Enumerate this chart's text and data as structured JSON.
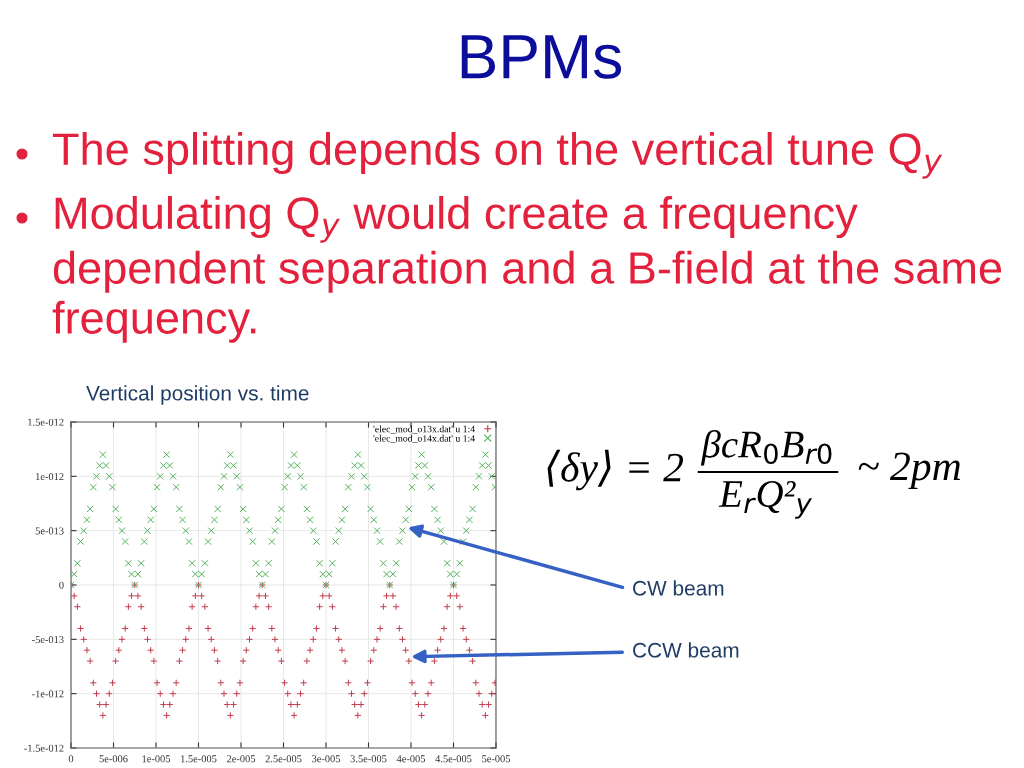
{
  "chart_data": {
    "type": "scatter",
    "title": "BPMs",
    "subtitle": "Vertical position vs. time",
    "annotations": [
      "The splitting depends on the vertical tune Q$_{y}$",
      "Modulating Q$_{y}$ would create a frequency dependent separation and a B-field at the same frequency.",
      "⟨δy⟩ = 2",
      "βcR$_{0}$B$_{r0}$",
      "E$_{r}$Q²$_{y}$",
      "~ 2pm",
      {
        "text": "CW beam",
        "x": 3.96e-05,
        "y": 5.3e-13
      },
      {
        "text": "CCW beam",
        "x": 4e-05,
        "y": -6.6e-13
      }
    ],
    "x": [
      0,
      3.75e-07,
      7.5e-07,
      1.125e-06,
      1.5e-06,
      1.875e-06,
      2.25e-06,
      2.625e-06,
      3e-06,
      3.375e-06,
      3.75e-06,
      4.125e-06,
      4.5e-06,
      4.875e-06,
      5.25e-06,
      5.625e-06,
      6e-06,
      6.375e-06,
      6.75e-06,
      7.125e-06,
      7.5e-06,
      7.875e-06,
      8.25e-06,
      8.625e-06,
      9e-06,
      9.375e-06,
      9.75e-06,
      1.0125e-05,
      1.05e-05,
      1.0875e-05,
      1.125e-05,
      1.1625e-05,
      1.2e-05,
      1.2375e-05,
      1.275e-05,
      1.3125e-05,
      1.35e-05,
      1.3875e-05,
      1.425e-05,
      1.4625e-05,
      1.5e-05,
      1.5375e-05,
      1.575e-05,
      1.6125e-05,
      1.65e-05,
      1.6875e-05,
      1.725e-05,
      1.7625e-05,
      1.8e-05,
      1.8375e-05,
      1.875e-05,
      1.9125e-05,
      1.95e-05,
      1.9875e-05,
      2.025e-05,
      2.0625e-05,
      2.1e-05,
      2.1375e-05,
      2.175e-05,
      2.2125e-05,
      2.25e-05,
      2.2875e-05,
      2.325e-05,
      2.3625e-05,
      2.4e-05,
      2.4375e-05,
      2.475e-05,
      2.5125e-05,
      2.55e-05,
      2.5875e-05,
      2.625e-05,
      2.6625e-05,
      2.7e-05,
      2.7375e-05,
      2.775e-05,
      2.8125e-05,
      2.85e-05,
      2.8875e-05,
      2.925e-05,
      2.9625e-05,
      3e-05,
      3.0375e-05,
      3.075e-05,
      3.1125e-05,
      3.15e-05,
      3.1875e-05,
      3.225e-05,
      3.2625e-05,
      3.3e-05,
      3.3375e-05,
      3.375e-05,
      3.4125e-05,
      3.45e-05,
      3.4875e-05,
      3.525e-05,
      3.5625e-05,
      3.6e-05,
      3.6375e-05,
      3.675e-05,
      3.7125e-05,
      3.75e-05,
      3.7875e-05,
      3.825e-05,
      3.8625e-05,
      3.9e-05,
      3.9375e-05,
      3.975e-05,
      4.0125e-05,
      4.05e-05,
      4.0875e-05,
      4.125e-05,
      4.1625e-05,
      4.2e-05,
      4.2375e-05,
      4.275e-05,
      4.3125e-05,
      4.35e-05,
      4.3875e-05,
      4.425e-05,
      4.4625e-05,
      4.5e-05,
      4.5375e-05,
      4.575e-05,
      4.6125e-05,
      4.65e-05,
      4.6875e-05,
      4.725e-05,
      4.7625e-05,
      4.8e-05,
      4.8375e-05,
      4.875e-05,
      4.9125e-05,
      4.95e-05,
      4.9875e-05
    ],
    "series": [
      {
        "name": "'elec_mod_o13x.dat' u 1:4",
        "color": "#c03848",
        "marker": "plus",
        "values": [
          0,
          -1e-13,
          -2e-13,
          -4e-13,
          -5e-13,
          -6e-13,
          -7e-13,
          -9e-13,
          -1e-12,
          -1.1e-12,
          -1.2e-12,
          -1.1e-12,
          -1e-12,
          -9e-13,
          -7e-13,
          -6e-13,
          -5e-13,
          -4e-13,
          -2e-13,
          -1e-13,
          0,
          -1e-13,
          -2e-13,
          -4e-13,
          -5e-13,
          -6e-13,
          -7e-13,
          -9e-13,
          -1e-12,
          -1.1e-12,
          -1.2e-12,
          -1.1e-12,
          -1e-12,
          -9e-13,
          -7e-13,
          -6e-13,
          -5e-13,
          -4e-13,
          -2e-13,
          -1e-13,
          0,
          -1e-13,
          -2e-13,
          -4e-13,
          -5e-13,
          -6e-13,
          -7e-13,
          -9e-13,
          -1e-12,
          -1.1e-12,
          -1.2e-12,
          -1.1e-12,
          -1e-12,
          -9e-13,
          -7e-13,
          -6e-13,
          -5e-13,
          -4e-13,
          -2e-13,
          -1e-13,
          0,
          -1e-13,
          -2e-13,
          -4e-13,
          -5e-13,
          -6e-13,
          -7e-13,
          -9e-13,
          -1e-12,
          -1.1e-12,
          -1.2e-12,
          -1.1e-12,
          -1e-12,
          -9e-13,
          -7e-13,
          -6e-13,
          -5e-13,
          -4e-13,
          -2e-13,
          -1e-13,
          0,
          -1e-13,
          -2e-13,
          -4e-13,
          -5e-13,
          -6e-13,
          -7e-13,
          -9e-13,
          -1e-12,
          -1.1e-12,
          -1.2e-12,
          -1.1e-12,
          -1e-12,
          -9e-13,
          -7e-13,
          -6e-13,
          -5e-13,
          -4e-13,
          -2e-13,
          -1e-13,
          0,
          -1e-13,
          -2e-13,
          -4e-13,
          -5e-13,
          -6e-13,
          -7e-13,
          -9e-13,
          -1e-12,
          -1.1e-12,
          -1.2e-12,
          -1.1e-12,
          -1e-12,
          -9e-13,
          -7e-13,
          -6e-13,
          -5e-13,
          -4e-13,
          -2e-13,
          -1e-13,
          0,
          -1e-13,
          -2e-13,
          -4e-13,
          -5e-13,
          -6e-13,
          -7e-13,
          -9e-13,
          -1e-12,
          -1.1e-12,
          -1.2e-12,
          -1.1e-12,
          -1e-12,
          -9e-13
        ]
      },
      {
        "name": "'elec_mod_o14x.dat' u 1:4",
        "color": "#4cb054",
        "marker": "cross",
        "values": [
          0,
          1e-13,
          2e-13,
          4e-13,
          5e-13,
          6e-13,
          7e-13,
          9e-13,
          1e-12,
          1.1e-12,
          1.2e-12,
          1.1e-12,
          1e-12,
          9e-13,
          7e-13,
          6e-13,
          5e-13,
          4e-13,
          2e-13,
          1e-13,
          0,
          1e-13,
          2e-13,
          4e-13,
          5e-13,
          6e-13,
          7e-13,
          9e-13,
          1e-12,
          1.1e-12,
          1.2e-12,
          1.1e-12,
          1e-12,
          9e-13,
          7e-13,
          6e-13,
          5e-13,
          4e-13,
          2e-13,
          1e-13,
          0,
          1e-13,
          2e-13,
          4e-13,
          5e-13,
          6e-13,
          7e-13,
          9e-13,
          1e-12,
          1.1e-12,
          1.2e-12,
          1.1e-12,
          1e-12,
          9e-13,
          7e-13,
          6e-13,
          5e-13,
          4e-13,
          2e-13,
          1e-13,
          0,
          1e-13,
          2e-13,
          4e-13,
          5e-13,
          6e-13,
          7e-13,
          9e-13,
          1e-12,
          1.1e-12,
          1.2e-12,
          1.1e-12,
          1e-12,
          9e-13,
          7e-13,
          6e-13,
          5e-13,
          4e-13,
          2e-13,
          1e-13,
          0,
          1e-13,
          2e-13,
          4e-13,
          5e-13,
          6e-13,
          7e-13,
          9e-13,
          1e-12,
          1.1e-12,
          1.2e-12,
          1.1e-12,
          1e-12,
          9e-13,
          7e-13,
          6e-13,
          5e-13,
          4e-13,
          2e-13,
          1e-13,
          0,
          1e-13,
          2e-13,
          4e-13,
          5e-13,
          6e-13,
          7e-13,
          9e-13,
          1e-12,
          1.1e-12,
          1.2e-12,
          1.1e-12,
          1e-12,
          9e-13,
          7e-13,
          6e-13,
          5e-13,
          4e-13,
          2e-13,
          1e-13,
          0,
          1e-13,
          2e-13,
          4e-13,
          5e-13,
          6e-13,
          7e-13,
          9e-13,
          1e-12,
          1.1e-12,
          1.2e-12,
          1.1e-12,
          1e-12,
          9e-13
        ]
      }
    ],
    "xlim": [
      0,
      5e-05
    ],
    "ylim": [
      -1.5e-12,
      1.5e-12
    ],
    "xticks": [
      0,
      {
        "value": 5e-06,
        "label": "5e-006"
      },
      {
        "value": 1e-05,
        "label": "1e-005"
      },
      {
        "value": 1.5e-05,
        "label": "1.5e-005"
      },
      {
        "value": 2e-05,
        "label": "2e-005"
      },
      {
        "value": 2.5e-05,
        "label": "2.5e-005"
      },
      {
        "value": 3e-05,
        "label": "3e-005"
      },
      {
        "value": 3.5e-05,
        "label": "3.5e-005"
      },
      {
        "value": 4e-05,
        "label": "4e-005"
      },
      {
        "value": 4.5e-05,
        "label": "4.5e-005"
      },
      {
        "value": 5e-05,
        "label": "5e-005"
      }
    ],
    "yticks": [
      {
        "value": -1.5e-12,
        "label": "-1.5e-012"
      },
      {
        "value": -1e-12,
        "label": "-1e-012"
      },
      {
        "value": -5e-13,
        "label": "-5e-013"
      },
      0,
      {
        "value": 5e-13,
        "label": "5e-013"
      },
      {
        "value": 1e-12,
        "label": "1e-012"
      },
      {
        "value": 1.5e-12,
        "label": "1.5e-012"
      }
    ],
    "grid": true,
    "legend": "top right"
  }
}
